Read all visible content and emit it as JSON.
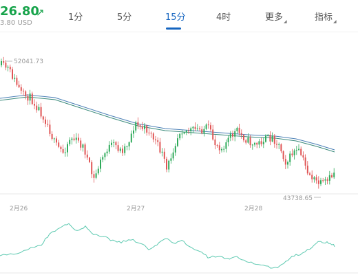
{
  "header": {
    "price": "26.80",
    "price_sub": "3.80 USD",
    "arrow_icon": "up-right-arrow-icon",
    "accent": "#16a34a"
  },
  "tabs": [
    {
      "label": "1分",
      "active": false
    },
    {
      "label": "5分",
      "active": false
    },
    {
      "label": "15分",
      "active": true
    },
    {
      "label": "4时",
      "active": false
    },
    {
      "label": "更多",
      "active": false,
      "dropdown": true
    },
    {
      "label": "指标",
      "active": false,
      "dropdown": true
    }
  ],
  "colors": {
    "up": "#2eaa5a",
    "down": "#e05555",
    "ma_fast": "#4a7fb5",
    "ma_slow": "#3a8a7a",
    "indicator": "#5cc9b0",
    "active_tab": "#1565c0"
  },
  "chart_data": {
    "type": "candlestick",
    "high_label": "52041.73",
    "low_label": "43738.65",
    "x_tick_labels": [
      "2月26",
      "2月27",
      "2月28"
    ],
    "indicator_type": "line"
  }
}
